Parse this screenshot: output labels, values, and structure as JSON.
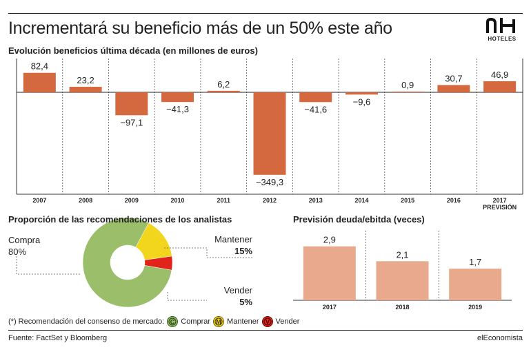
{
  "header": {
    "title": "Incrementará su beneficio más de un 50% este año",
    "logo_mark": "NH",
    "logo_text": "HOTELES"
  },
  "colors": {
    "bar": "#d4693f",
    "light_bar": "#e9a98c",
    "compra": "#9bbe6b",
    "mantener": "#f2d51d",
    "vender": "#e1231b"
  },
  "chart_data": [
    {
      "type": "bar",
      "title": "Evolución beneficios última década (en millones de euros)",
      "categories": [
        "2007",
        "2008",
        "2009",
        "2010",
        "2011",
        "2012",
        "2013",
        "2014",
        "2015",
        "2016",
        "2017"
      ],
      "category_notes": [
        "",
        "",
        "",
        "",
        "",
        "",
        "",
        "",
        "",
        "",
        "PREVISIÓN"
      ],
      "values": [
        82.4,
        23.2,
        -97.1,
        -41.3,
        6.2,
        -349.3,
        -41.6,
        -9.6,
        0.9,
        30.7,
        46.9
      ],
      "value_labels": [
        "82,4",
        "23,2",
        "−97,1",
        "−41,3",
        "6,2",
        "−349,3",
        "−41,6",
        "−9,6",
        "0,9",
        "30,7",
        "46,9"
      ],
      "grid": false
    },
    {
      "type": "pie",
      "title": "Proporción de las recomendaciones de los analistas",
      "slices": [
        {
          "name": "Compra",
          "value": 80,
          "label": "80%"
        },
        {
          "name": "Mantener",
          "value": 15,
          "label": "15%"
        },
        {
          "name": "Vender",
          "value": 5,
          "label": "5%"
        }
      ]
    },
    {
      "type": "bar",
      "title": "Previsión deuda/ebitda (veces)",
      "categories": [
        "2017",
        "2018",
        "2019"
      ],
      "values": [
        2.9,
        2.1,
        1.7
      ],
      "value_labels": [
        "2,9",
        "2,1",
        "1,7"
      ],
      "grid": false
    }
  ],
  "footnote": {
    "text": "(*) Recomendación del consenso de mercado:",
    "items": [
      {
        "letter": "C",
        "label": "Comprar"
      },
      {
        "letter": "M",
        "label": "Mantener"
      },
      {
        "letter": "V",
        "label": "Vender"
      }
    ]
  },
  "footer": {
    "source": "Fuente: FactSet y Bloomberg",
    "brand": "elEconomista"
  }
}
